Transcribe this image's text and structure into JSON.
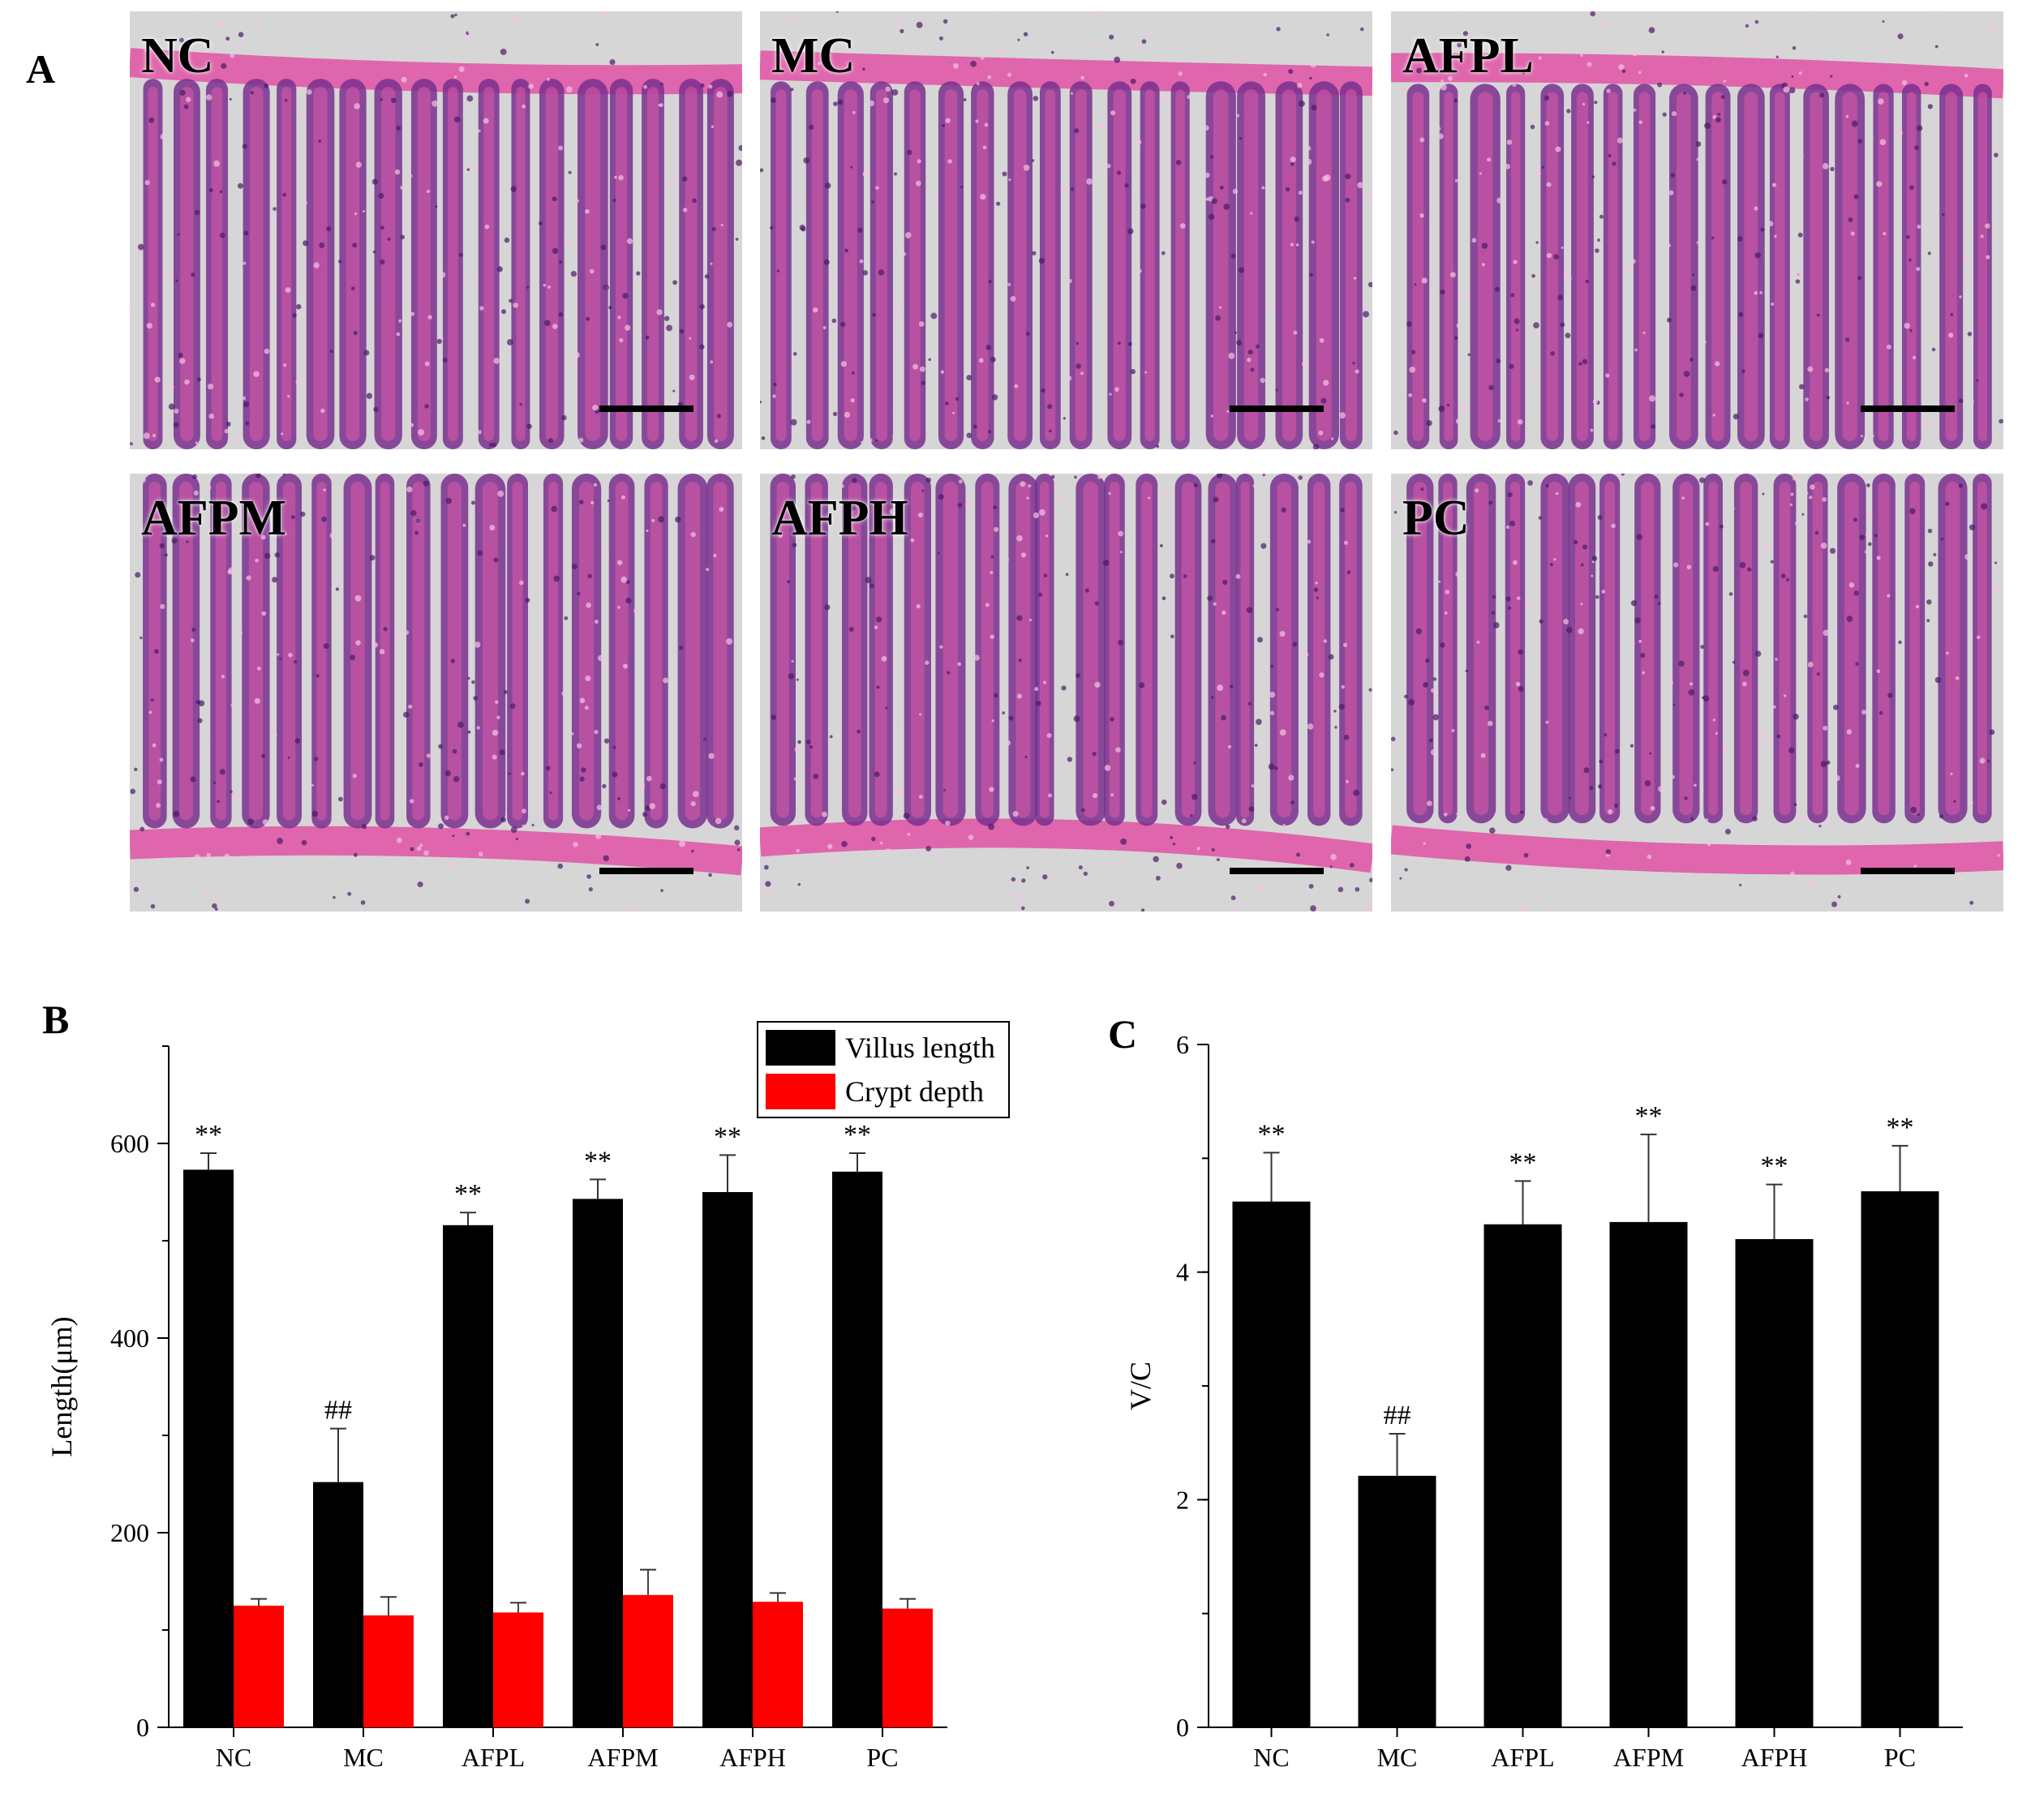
{
  "panels": {
    "a": "A",
    "b": "B",
    "c": "C"
  },
  "micrographs": [
    {
      "label": "NC"
    },
    {
      "label": "MC"
    },
    {
      "label": "AFPL"
    },
    {
      "label": "AFPM"
    },
    {
      "label": "AFPH"
    },
    {
      "label": "PC"
    }
  ],
  "colors": {
    "villus": "#000000",
    "crypt": "#ff0000",
    "tissue_pink": "#e05aa8",
    "tissue_purple": "#7a2f8e",
    "background_gray": "#d6d6d6"
  },
  "chart_data": [
    {
      "type": "bar",
      "panel": "B",
      "categories": [
        "NC",
        "MC",
        "AFPL",
        "AFPM",
        "AFPH",
        "PC"
      ],
      "series": [
        {
          "name": "Villus length",
          "color": "#000000",
          "values": [
            573,
            252,
            516,
            543,
            550,
            571
          ],
          "errors": [
            17,
            55,
            13,
            20,
            38,
            19
          ],
          "annotations": [
            "**",
            "##",
            "**",
            "**",
            "**",
            "**"
          ]
        },
        {
          "name": "Crypt depth",
          "color": "#ff0000",
          "values": [
            125,
            115,
            118,
            136,
            129,
            122
          ],
          "errors": [
            7,
            19,
            10,
            26,
            9,
            10
          ],
          "annotations": [
            "",
            "",
            "",
            "",
            "",
            ""
          ]
        }
      ],
      "ylabel": "Length(μm)",
      "ylim": [
        0,
        700
      ],
      "yticks": [
        "0",
        "200",
        "400",
        "600"
      ],
      "legend": "top-right"
    },
    {
      "type": "bar",
      "panel": "C",
      "categories": [
        "NC",
        "MC",
        "AFPL",
        "AFPM",
        "AFPH",
        "PC"
      ],
      "series": [
        {
          "color": "#000000",
          "values": [
            4.62,
            2.21,
            4.42,
            4.44,
            4.29,
            4.71
          ],
          "errors": [
            0.43,
            0.37,
            0.38,
            0.77,
            0.48,
            0.4
          ],
          "annotations": [
            "**",
            "##",
            "**",
            "**",
            "**",
            "**"
          ]
        }
      ],
      "ylabel": "V/C",
      "ylim": [
        0,
        6
      ],
      "yticks": [
        "0",
        "2",
        "4",
        "6"
      ]
    }
  ]
}
